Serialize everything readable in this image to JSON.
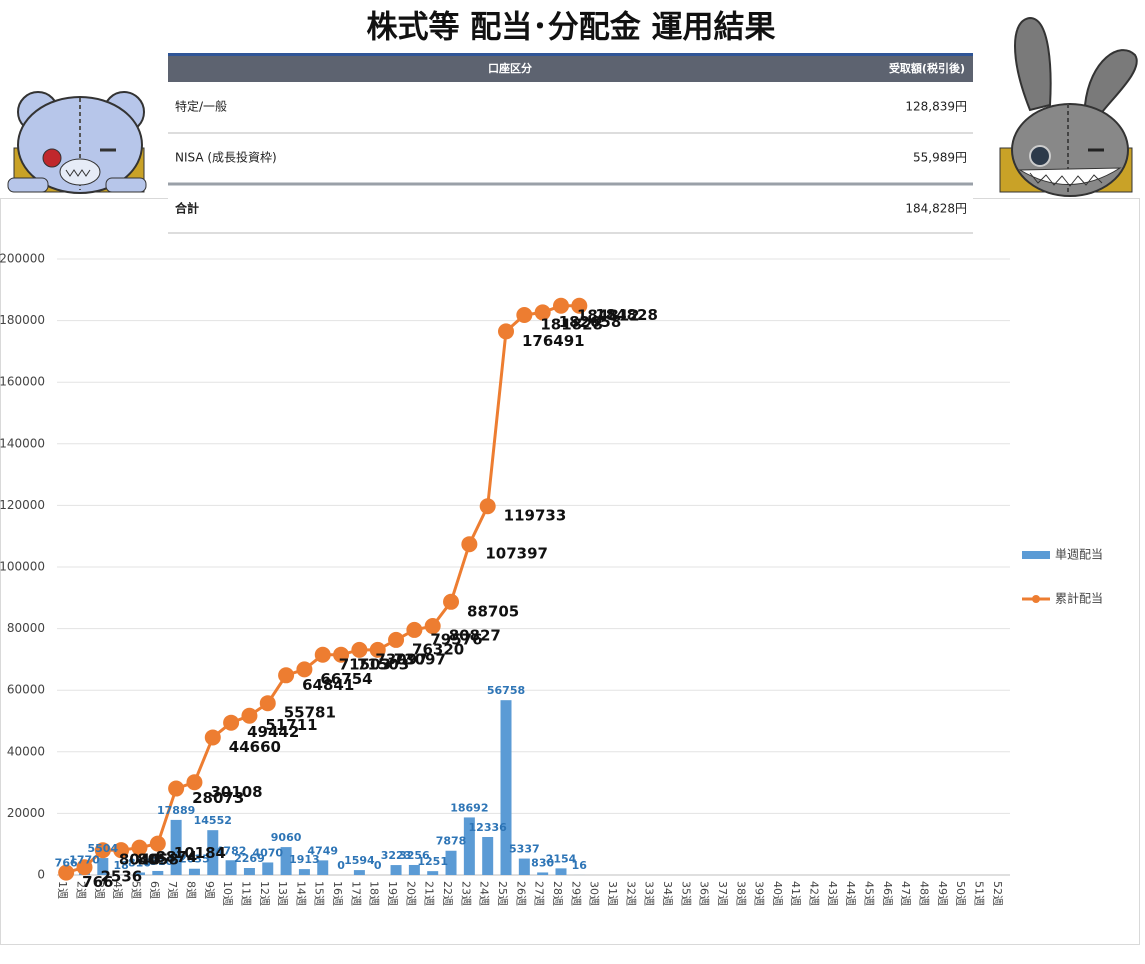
{
  "header": {
    "title": "株式等 配当･分配金 運用結果"
  },
  "table": {
    "columns": [
      "口座区分",
      "受取額(税引後)"
    ],
    "rows": [
      [
        "特定/一般",
        "128,839円"
      ],
      [
        "NISA (成長投資枠)",
        "55,989円"
      ],
      [
        "合計",
        "184,828円"
      ]
    ]
  },
  "chart_data": {
    "type": "bar_line",
    "categories": [
      "1週",
      "2週",
      "3週",
      "4週",
      "5週",
      "6週",
      "7週",
      "8週",
      "9週",
      "10週",
      "11週",
      "12週",
      "13週",
      "14週",
      "15週",
      "16週",
      "17週",
      "18週",
      "19週",
      "20週",
      "21週",
      "22週",
      "23週",
      "24週",
      "25週",
      "26週",
      "27週",
      "28週",
      "29週",
      "30週",
      "31週",
      "32週",
      "33週",
      "34週",
      "35週",
      "36週",
      "37週",
      "38週",
      "39週",
      "40週",
      "41週",
      "42週",
      "43週",
      "44週",
      "45週",
      "46週",
      "47週",
      "48週",
      "49週",
      "50週",
      "51週",
      "52週"
    ],
    "series": [
      {
        "name": "単週配当",
        "type": "bar",
        "color": "#5b9bd5",
        "values": [
          766,
          1770,
          5504,
          18,
          816,
          1310,
          17889,
          2035,
          14552,
          4782,
          2269,
          4070,
          9060,
          1913,
          4749,
          0,
          1594,
          0,
          3223,
          3256,
          1251,
          7878,
          18692,
          12336,
          56758,
          5337,
          830,
          2154,
          16,
          null,
          null,
          null,
          null,
          null,
          null,
          null,
          null,
          null,
          null,
          null,
          null,
          null,
          null,
          null,
          null,
          null,
          null,
          null,
          null,
          null,
          null,
          null
        ]
      },
      {
        "name": "累計配当",
        "type": "line",
        "color": "#ed7d31",
        "values": [
          766,
          2536,
          8040,
          8058,
          8874,
          10184,
          28073,
          30108,
          44660,
          49442,
          51711,
          55781,
          64841,
          66754,
          71503,
          71503,
          73097,
          73097,
          76320,
          79576,
          80827,
          88705,
          107397,
          119733,
          176491,
          181828,
          182658,
          184812,
          184828,
          null,
          null,
          null,
          null,
          null,
          null,
          null,
          null,
          null,
          null,
          null,
          null,
          null,
          null,
          null,
          null,
          null,
          null,
          null,
          null,
          null,
          null,
          null
        ]
      }
    ],
    "ylim": [
      0,
      200000
    ],
    "yticks": [
      0,
      20000,
      40000,
      60000,
      80000,
      100000,
      120000,
      140000,
      160000,
      180000,
      200000
    ],
    "grid": true,
    "legend": "right"
  }
}
